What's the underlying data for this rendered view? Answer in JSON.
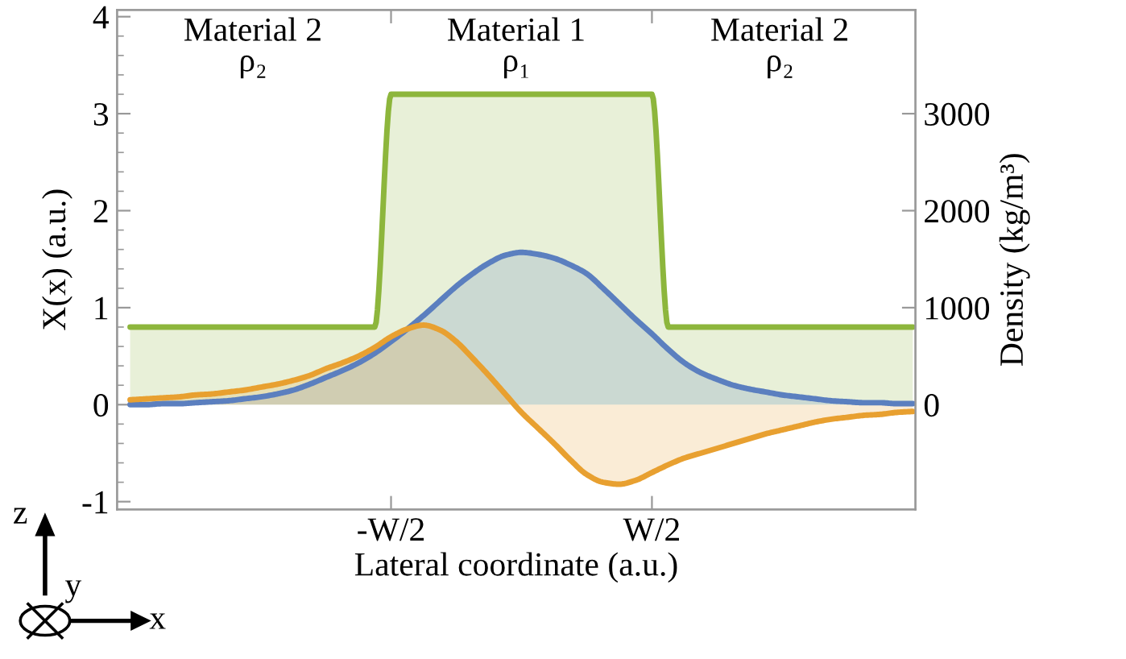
{
  "chart_data": {
    "type": "area",
    "xlabel": "Lateral coordinate (a.u.)",
    "ylabel": "X(x) (a.u.)",
    "y2label": "Density (kg/m³)",
    "categories": [
      null,
      null,
      null,
      null,
      null,
      null,
      null,
      null,
      null,
      null,
      null,
      null,
      null,
      null,
      null,
      null,
      "-W/2",
      null,
      null,
      null,
      null,
      null,
      null,
      null,
      null,
      null,
      null,
      null,
      null,
      null,
      null,
      null,
      "W/2",
      null,
      null,
      null,
      null,
      null,
      null,
      null,
      null,
      null,
      null,
      null,
      null,
      null,
      null,
      null,
      null
    ],
    "ylim": [
      -1.08,
      4.07
    ],
    "y2lim": [
      -1080,
      4070
    ],
    "yticks": [
      -1,
      0,
      1,
      2,
      3,
      4
    ],
    "y2ticks": [
      0,
      1000,
      2000,
      3000
    ],
    "grid": false,
    "legend": false,
    "series": [
      {
        "axis": "y2",
        "color": "#8db63c",
        "values": [
          800,
          800,
          800,
          800,
          800,
          800,
          800,
          800,
          800,
          800,
          800,
          800,
          800,
          800,
          800,
          800,
          3200,
          3200,
          3200,
          3200,
          3200,
          3200,
          3200,
          3200,
          3200,
          3200,
          3200,
          3200,
          3200,
          3200,
          3200,
          3200,
          3200,
          800,
          800,
          800,
          800,
          800,
          800,
          800,
          800,
          800,
          800,
          800,
          800,
          800,
          800,
          800,
          800
        ]
      },
      {
        "color": "#5b7fbf",
        "values": [
          0.0,
          0.0,
          0.01,
          0.01,
          0.02,
          0.03,
          0.04,
          0.06,
          0.08,
          0.11,
          0.15,
          0.21,
          0.28,
          0.35,
          0.43,
          0.53,
          0.65,
          0.78,
          0.92,
          1.07,
          1.22,
          1.35,
          1.46,
          1.54,
          1.57,
          1.55,
          1.51,
          1.44,
          1.35,
          1.2,
          1.04,
          0.88,
          0.73,
          0.57,
          0.43,
          0.33,
          0.26,
          0.2,
          0.16,
          0.13,
          0.1,
          0.08,
          0.06,
          0.04,
          0.03,
          0.02,
          0.02,
          0.01,
          0.01
        ]
      },
      {
        "color": "#e8a030",
        "values": [
          0.05,
          0.06,
          0.07,
          0.08,
          0.1,
          0.11,
          0.13,
          0.15,
          0.18,
          0.21,
          0.25,
          0.3,
          0.37,
          0.43,
          0.5,
          0.59,
          0.7,
          0.78,
          0.82,
          0.77,
          0.65,
          0.48,
          0.3,
          0.11,
          -0.08,
          -0.24,
          -0.4,
          -0.57,
          -0.72,
          -0.8,
          -0.82,
          -0.78,
          -0.7,
          -0.62,
          -0.55,
          -0.5,
          -0.45,
          -0.4,
          -0.35,
          -0.3,
          -0.26,
          -0.22,
          -0.18,
          -0.15,
          -0.13,
          -0.11,
          -0.1,
          -0.08,
          -0.07
        ]
      }
    ],
    "annotations": [
      "Material 2\nρ₂",
      "Material 1\nρ₁",
      "Material 2\nρ₂",
      "z",
      "y",
      "x"
    ]
  }
}
